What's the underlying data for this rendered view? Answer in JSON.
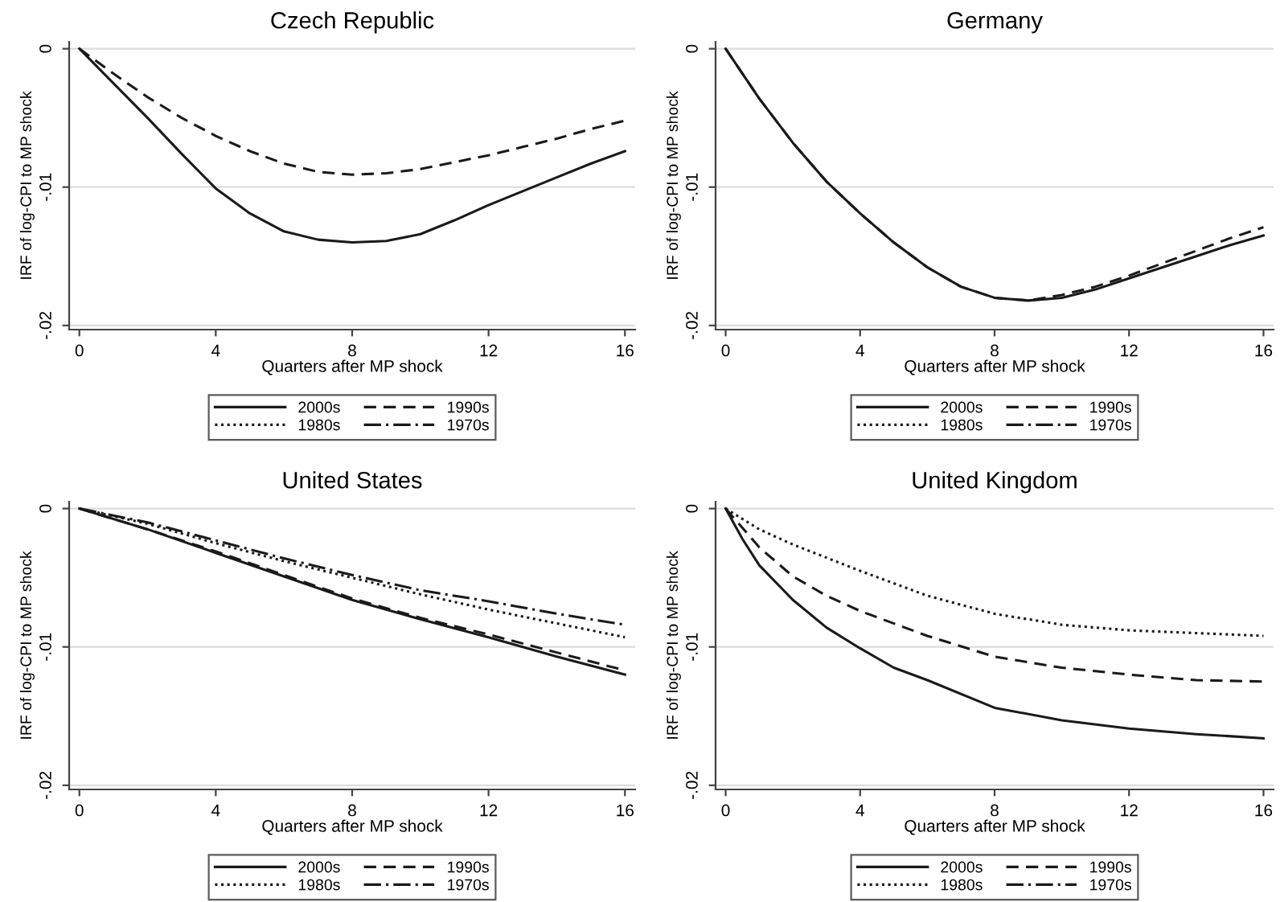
{
  "chart_data": [
    {
      "type": "line",
      "title": "Czech Republic",
      "xlabel": "Quarters after MP shock",
      "ylabel": "IRF of log-CPI to MP shock",
      "xlim": [
        -0.3,
        16.3
      ],
      "ylim": [
        -0.0203,
        0.0005
      ],
      "xticks": [
        0,
        4,
        8,
        12,
        16
      ],
      "yticks": [
        {
          "value": 0,
          "label": "0"
        },
        {
          "value": -0.01,
          "label": "-.01"
        },
        {
          "value": -0.02,
          "label": "-.02"
        }
      ],
      "grid": "y",
      "legend": "bottom",
      "series": [
        {
          "name": "2000s",
          "color": "#1a1a1a",
          "line_style": "solid",
          "x": [
            0,
            1,
            2,
            3,
            4,
            5,
            6,
            7,
            8,
            9,
            10,
            11,
            12,
            13,
            14,
            15,
            16
          ],
          "values": [
            0,
            -0.0025,
            -0.005,
            -0.0076,
            -0.0101,
            -0.0119,
            -0.0132,
            -0.0138,
            -0.014,
            -0.0139,
            -0.0134,
            -0.0124,
            -0.0113,
            -0.0103,
            -0.0093,
            -0.0083,
            -0.0074
          ]
        },
        {
          "name": "1990s",
          "color": "#1a1a1a",
          "line_style": "dashed",
          "x": [
            0,
            1,
            2,
            3,
            4,
            5,
            6,
            7,
            8,
            9,
            10,
            11,
            12,
            13,
            14,
            15,
            16
          ],
          "values": [
            0,
            -0.0018,
            -0.0035,
            -0.005,
            -0.0063,
            -0.0074,
            -0.0083,
            -0.0089,
            -0.0091,
            -0.009,
            -0.0087,
            -0.0082,
            -0.0077,
            -0.0071,
            -0.0065,
            -0.0058,
            -0.0052
          ]
        },
        {
          "name": "1980s",
          "color": "#1a1a1a",
          "line_style": "dotted"
        },
        {
          "name": "1970s",
          "color": "#1a1a1a",
          "line_style": "dashdot"
        }
      ]
    },
    {
      "type": "line",
      "title": "Germany",
      "xlabel": "Quarters after MP shock",
      "ylabel": "IRF of log-CPI to MP shock",
      "xlim": [
        -0.3,
        16.3
      ],
      "ylim": [
        -0.0203,
        0.0005
      ],
      "xticks": [
        0,
        4,
        8,
        12,
        16
      ],
      "yticks": [
        {
          "value": 0,
          "label": "0"
        },
        {
          "value": -0.01,
          "label": "-.01"
        },
        {
          "value": -0.02,
          "label": "-.02"
        }
      ],
      "grid": "y",
      "legend": "bottom",
      "series": [
        {
          "name": "2000s",
          "color": "#1a1a1a",
          "line_style": "solid",
          "x": [
            0,
            1,
            2,
            3,
            4,
            5,
            6,
            7,
            8,
            9,
            10,
            11,
            12,
            13,
            14,
            15,
            16
          ],
          "values": [
            0,
            -0.0036,
            -0.0068,
            -0.0096,
            -0.0119,
            -0.014,
            -0.0158,
            -0.0172,
            -0.018,
            -0.0182,
            -0.018,
            -0.0174,
            -0.0166,
            -0.0158,
            -0.015,
            -0.0142,
            -0.0135
          ]
        },
        {
          "name": "1990s",
          "color": "#1a1a1a",
          "line_style": "dashed",
          "x": [
            0,
            1,
            2,
            3,
            4,
            5,
            6,
            7,
            8,
            9,
            10,
            11,
            12,
            13,
            14,
            15,
            16
          ],
          "values": [
            0,
            -0.0036,
            -0.0068,
            -0.0096,
            -0.0119,
            -0.014,
            -0.0158,
            -0.0172,
            -0.018,
            -0.0182,
            -0.0178,
            -0.0172,
            -0.0164,
            -0.0155,
            -0.0146,
            -0.0137,
            -0.0129
          ]
        },
        {
          "name": "1980s",
          "color": "#1a1a1a",
          "line_style": "dotted"
        },
        {
          "name": "1970s",
          "color": "#1a1a1a",
          "line_style": "dashdot"
        }
      ]
    },
    {
      "type": "line",
      "title": "United States",
      "xlabel": "Quarters after MP shock",
      "ylabel": "IRF of log-CPI to MP shock",
      "xlim": [
        -0.3,
        16.3
      ],
      "ylim": [
        -0.0203,
        0.0005
      ],
      "xticks": [
        0,
        4,
        8,
        12,
        16
      ],
      "yticks": [
        {
          "value": 0,
          "label": "0"
        },
        {
          "value": -0.01,
          "label": "-.01"
        },
        {
          "value": -0.02,
          "label": "-.02"
        }
      ],
      "grid": "y",
      "legend": "bottom",
      "series": [
        {
          "name": "2000s",
          "color": "#1a1a1a",
          "line_style": "solid",
          "x": [
            0,
            2,
            4,
            6,
            8,
            10,
            12,
            14,
            16
          ],
          "values": [
            0,
            -0.0015,
            -0.0032,
            -0.0049,
            -0.0066,
            -0.008,
            -0.0093,
            -0.0107,
            -0.012
          ]
        },
        {
          "name": "1990s",
          "color": "#1a1a1a",
          "line_style": "dashed",
          "x": [
            0,
            2,
            4,
            6,
            8,
            10,
            12,
            14,
            16
          ],
          "values": [
            0,
            -0.0015,
            -0.0031,
            -0.0048,
            -0.0065,
            -0.0079,
            -0.0091,
            -0.0104,
            -0.0117
          ]
        },
        {
          "name": "1980s",
          "color": "#1a1a1a",
          "line_style": "dotted",
          "x": [
            0,
            2,
            4,
            6,
            8,
            10,
            12,
            14,
            16
          ],
          "values": [
            0,
            -0.0011,
            -0.0025,
            -0.0038,
            -0.005,
            -0.0062,
            -0.0073,
            -0.0083,
            -0.0093
          ]
        },
        {
          "name": "1970s",
          "color": "#1a1a1a",
          "line_style": "dashdot",
          "x": [
            0,
            2,
            4,
            6,
            8,
            10,
            12,
            14,
            16
          ],
          "values": [
            0,
            -0.001,
            -0.0023,
            -0.0036,
            -0.0048,
            -0.0059,
            -0.0067,
            -0.0076,
            -0.0084
          ]
        }
      ]
    },
    {
      "type": "line",
      "title": "United Kingdom",
      "xlabel": "Quarters after MP shock",
      "ylabel": "IRF of log-CPI to MP shock",
      "xlim": [
        -0.3,
        16.3
      ],
      "ylim": [
        -0.0203,
        0.0005
      ],
      "xticks": [
        0,
        4,
        8,
        12,
        16
      ],
      "yticks": [
        {
          "value": 0,
          "label": "0"
        },
        {
          "value": -0.01,
          "label": "-.01"
        },
        {
          "value": -0.02,
          "label": "-.02"
        }
      ],
      "grid": "y",
      "legend": "bottom",
      "series": [
        {
          "name": "2000s",
          "color": "#1a1a1a",
          "line_style": "solid",
          "x": [
            0,
            0.5,
            1,
            2,
            3,
            4,
            5,
            6,
            8,
            10,
            12,
            14,
            16
          ],
          "values": [
            0,
            -0.0022,
            -0.0041,
            -0.0066,
            -0.0086,
            -0.0101,
            -0.0115,
            -0.0124,
            -0.0144,
            -0.0153,
            -0.0159,
            -0.0163,
            -0.0166
          ]
        },
        {
          "name": "1990s",
          "color": "#1a1a1a",
          "line_style": "dashed",
          "x": [
            0,
            1,
            2,
            3,
            4,
            6,
            8,
            10,
            12,
            14,
            16
          ],
          "values": [
            0,
            -0.0028,
            -0.0049,
            -0.0063,
            -0.0074,
            -0.0092,
            -0.0107,
            -0.0115,
            -0.012,
            -0.0124,
            -0.0125
          ]
        },
        {
          "name": "1980s",
          "color": "#1a1a1a",
          "line_style": "dotted",
          "x": [
            0,
            1,
            2,
            4,
            6,
            8,
            10,
            12,
            14,
            16
          ],
          "values": [
            0,
            -0.0015,
            -0.0026,
            -0.0045,
            -0.0063,
            -0.0076,
            -0.0084,
            -0.0088,
            -0.009,
            -0.0092
          ]
        },
        {
          "name": "1970s",
          "color": "#1a1a1a",
          "line_style": "dashdot"
        }
      ]
    }
  ]
}
